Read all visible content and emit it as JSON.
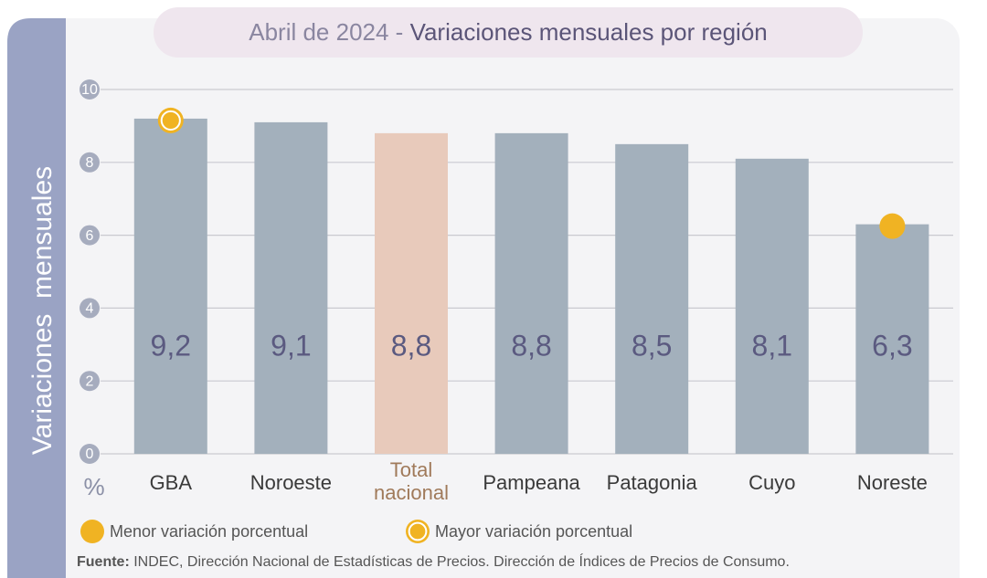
{
  "chart_data": {
    "type": "bar",
    "title_prefix": "Abril de 2024 - ",
    "title": "Variaciones mensuales por región",
    "y_axis_label": "Variaciones  mensuales",
    "y_unit": "%",
    "categories": [
      "GBA",
      "Noroeste",
      "Total nacional",
      "Pampeana",
      "Patagonia",
      "Cuyo",
      "Noreste"
    ],
    "values": [
      9.2,
      9.1,
      8.8,
      8.8,
      8.5,
      8.1,
      6.3
    ],
    "value_labels": [
      "9,2",
      "9,1",
      "8,8",
      "8,8",
      "8,5",
      "8,1",
      "6,3"
    ],
    "colors": [
      "#a3b0bc",
      "#a3b0bc",
      "#e8cabb",
      "#a3b0bc",
      "#a3b0bc",
      "#a3b0bc",
      "#a3b0bc"
    ],
    "ylim": [
      0,
      10
    ],
    "yticks": [
      0,
      2,
      4,
      6,
      8,
      10
    ],
    "grid": true,
    "legend": [
      {
        "name": "Menor variación porcentual",
        "style": "filled",
        "category": "Noreste"
      },
      {
        "name": "Mayor variación porcentual",
        "style": "ring",
        "category": "GBA"
      }
    ],
    "marker_color": "#f0b323",
    "source_label": "Fuente:",
    "source": " INDEC, Dirección Nacional de Estadísticas de Precios. Dirección de Índices de Precios de Consumo."
  }
}
